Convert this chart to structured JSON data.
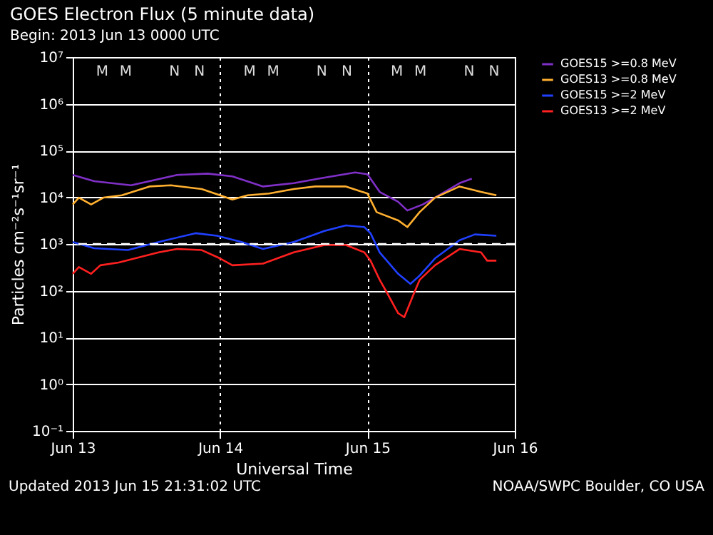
{
  "chart_data": {
    "type": "line",
    "title": "GOES Electron Flux (5 minute data)",
    "subtitle": "Begin: 2013 Jun 13 0000 UTC",
    "xlabel": "Universal Time",
    "ylabel": "Particles cm⁻²s⁻¹sr⁻¹",
    "log": "y",
    "grid": true,
    "legend": "right",
    "xlim": [
      "2013-06-13",
      "2013-06-16"
    ],
    "xticks": [
      {
        "value": "2013-06-13",
        "label": "Jun 13"
      },
      {
        "value": "2013-06-14",
        "label": "Jun 14"
      },
      {
        "value": "2013-06-15",
        "label": "Jun 15"
      },
      {
        "value": "2013-06-16",
        "label": "Jun 16"
      }
    ],
    "ylim": [
      0.1,
      10000000
    ],
    "yticks": [
      {
        "value": 0.1,
        "label": "10⁻¹"
      },
      {
        "value": 1,
        "label": "10⁰"
      },
      {
        "value": 10,
        "label": "10¹"
      },
      {
        "value": 100,
        "label": "10²"
      },
      {
        "value": 1000,
        "label": "10³"
      },
      {
        "value": 10000,
        "label": "10⁴"
      },
      {
        "value": 100000,
        "label": "10⁵"
      },
      {
        "value": 1000000,
        "label": "10⁶"
      },
      {
        "value": 10000000,
        "label": "10⁷"
      }
    ],
    "ref_lines": [
      {
        "axis": "y",
        "value": 1000,
        "color": "#ffffff",
        "line_style": "dashed"
      }
    ],
    "series": [
      {
        "name": "GOES15 >=0.8 MeV",
        "color": "#8030c8",
        "x": [
          "2013-06-13T00:00",
          "2013-06-13T03:30",
          "2013-06-13T09:30",
          "2013-06-13T17:00",
          "2013-06-13T22:00",
          "2013-06-14T02:00",
          "2013-06-14T07:00",
          "2013-06-14T12:00",
          "2013-06-14T16:00",
          "2013-06-14T22:00",
          "2013-06-15T00:00",
          "2013-06-15T02:00",
          "2013-06-15T05:00",
          "2013-06-15T06:30",
          "2013-06-15T09:00",
          "2013-06-15T11:00",
          "2013-06-15T15:00",
          "2013-06-15T17:00"
        ],
        "values": [
          30000,
          22000,
          18000,
          30000,
          32000,
          28000,
          17000,
          20000,
          25000,
          34000,
          31000,
          13000,
          8000,
          5200,
          7000,
          9800,
          20000,
          25000
        ]
      },
      {
        "name": "GOES13 >=0.8 MeV",
        "color": "#ffb030",
        "x": [
          "2013-06-13T00:00",
          "2013-06-13T01:00",
          "2013-06-13T03:00",
          "2013-06-13T05:00",
          "2013-06-13T08:00",
          "2013-06-13T12:30",
          "2013-06-13T16:00",
          "2013-06-13T21:00",
          "2013-06-14T00:00",
          "2013-06-14T02:00",
          "2013-06-14T04:30",
          "2013-06-14T08:00",
          "2013-06-14T12:00",
          "2013-06-14T15:30",
          "2013-06-14T20:30",
          "2013-06-15T00:00",
          "2013-06-15T01:30",
          "2013-06-15T05:00",
          "2013-06-15T06:30",
          "2013-06-15T08:30",
          "2013-06-15T11:00",
          "2013-06-15T15:00",
          "2013-06-15T18:30",
          "2013-06-15T21:00"
        ],
        "values": [
          7000,
          9800,
          7000,
          9800,
          11000,
          17000,
          18000,
          15000,
          11000,
          8900,
          11000,
          12000,
          15000,
          17000,
          17000,
          12000,
          4800,
          3200,
          2300,
          4800,
          9800,
          17000,
          13000,
          11000
        ]
      },
      {
        "name": "GOES15 >=2 MeV",
        "color": "#2040ff",
        "x": [
          "2013-06-13T00:00",
          "2013-06-13T03:30",
          "2013-06-13T09:00",
          "2013-06-13T14:00",
          "2013-06-13T20:00",
          "2013-06-13T23:30",
          "2013-06-14T03:30",
          "2013-06-14T07:00",
          "2013-06-14T12:00",
          "2013-06-14T17:00",
          "2013-06-14T20:30",
          "2013-06-14T23:30",
          "2013-06-15T00:30",
          "2013-06-15T02:00",
          "2013-06-15T05:00",
          "2013-06-15T07:00",
          "2013-06-15T08:30",
          "2013-06-15T11:00",
          "2013-06-15T15:00",
          "2013-06-15T17:30",
          "2013-06-15T21:00"
        ],
        "values": [
          1100,
          810,
          740,
          1100,
          1700,
          1500,
          1100,
          780,
          1100,
          1900,
          2500,
          2300,
          1700,
          660,
          230,
          140,
          210,
          490,
          1200,
          1600,
          1500
        ]
      },
      {
        "name": "GOES13 >=2 MeV",
        "color": "#ff2020",
        "x": [
          "2013-06-13T00:00",
          "2013-06-13T01:00",
          "2013-06-13T03:00",
          "2013-06-13T04:30",
          "2013-06-13T07:30",
          "2013-06-13T14:00",
          "2013-06-13T17:00",
          "2013-06-13T21:00",
          "2013-06-14T00:00",
          "2013-06-14T02:00",
          "2013-06-14T07:00",
          "2013-06-14T12:00",
          "2013-06-14T17:00",
          "2013-06-14T20:30",
          "2013-06-14T23:30",
          "2013-06-15T00:30",
          "2013-06-15T02:00",
          "2013-06-15T03:00",
          "2013-06-15T05:00",
          "2013-06-15T06:00",
          "2013-06-15T07:30",
          "2013-06-15T08:30",
          "2013-06-15T11:00",
          "2013-06-15T15:00",
          "2013-06-15T18:30",
          "2013-06-15T19:30",
          "2013-06-15T21:00"
        ],
        "values": [
          230,
          320,
          230,
          350,
          400,
          660,
          780,
          740,
          490,
          350,
          380,
          660,
          950,
          950,
          660,
          440,
          170,
          100,
          33,
          27,
          83,
          170,
          350,
          780,
          660,
          440,
          440
        ]
      }
    ],
    "annotations": [
      "M",
      "M",
      "N",
      "N",
      "M",
      "M",
      "N",
      "N",
      "M",
      "M",
      "N",
      "N",
      "Updated 2013 Jun 15 21:31:02 UTC",
      "NOAA/SWPC Boulder, CO USA"
    ]
  }
}
